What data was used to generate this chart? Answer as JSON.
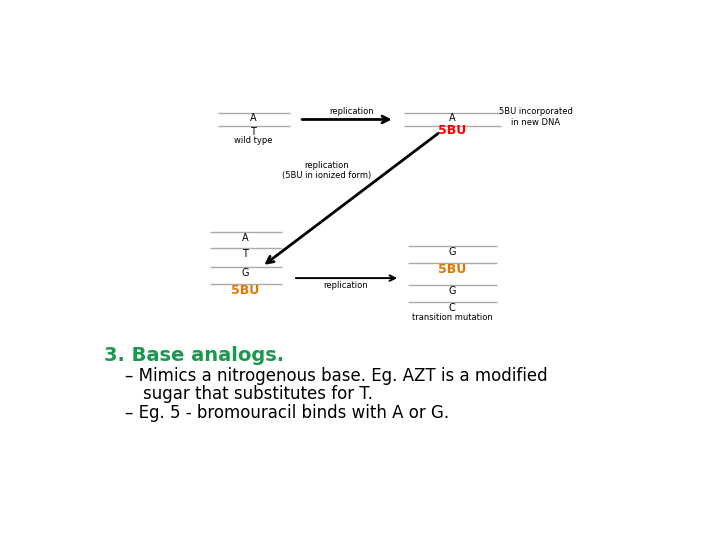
{
  "bg_color": "#ffffff",
  "title_text": "3. Base analogs.",
  "title_color": "#1a9850",
  "title_fontsize": 14,
  "bullet1_line1": "– Mimics a nitrogenous base. Eg. AZT is a modified",
  "bullet1_line2": "   sugar that substitutes for T.",
  "bullet2": "– Eg. 5 - bromouracil binds with A or G.",
  "bullet_color": "#000000",
  "bullet_fontsize": 12,
  "red": "#ff0000",
  "orange": "#e07800",
  "black": "#000000",
  "gray": "#888888",
  "line_color": "#aaaaaa",
  "diag_label_fontsize": 6,
  "dna_letter_fontsize": 7,
  "fivebu_fontsize": 9,
  "arrow_label_fontsize": 6,
  "small_label_fontsize": 6
}
